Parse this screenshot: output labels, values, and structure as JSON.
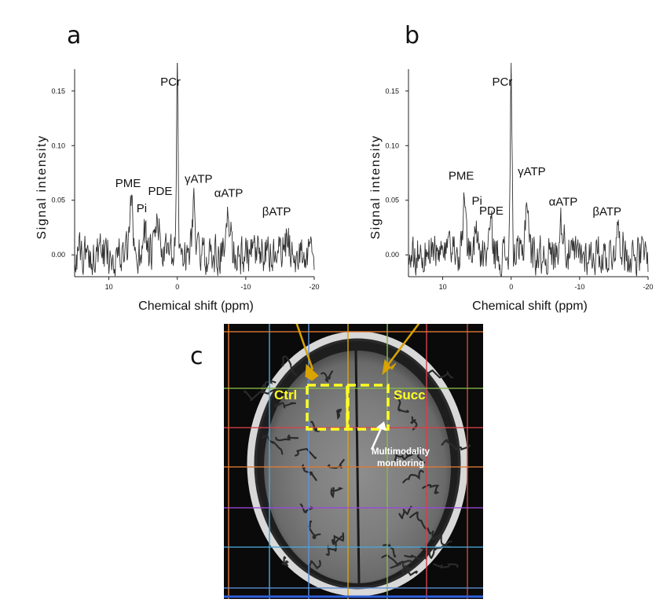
{
  "figure": {
    "panel_a_letter": "a",
    "panel_b_letter": "b",
    "panel_c_letter": "c"
  },
  "chart_data": [
    {
      "panel": "a",
      "type": "line",
      "xlabel": "Chemical shift (ppm)",
      "ylabel": "Signal intensity",
      "xlim": [
        15,
        -20
      ],
      "ylim": [
        -0.02,
        0.17
      ],
      "x_ticks": [
        10,
        0,
        -10,
        -20
      ],
      "x_tick_labels": [
        "10",
        "0",
        "-10",
        "-20"
      ],
      "y_ticks": [
        0.0,
        0.05,
        0.1,
        0.15
      ],
      "y_tick_labels": [
        "0.00",
        "0.05",
        "0.10",
        "0.15"
      ],
      "peaks": [
        {
          "label": "PCr",
          "x": 0.0,
          "y": 0.165,
          "width": 0.18
        },
        {
          "label": "PME",
          "x": 6.7,
          "y": 0.043,
          "width": 0.35
        },
        {
          "label": "Pi",
          "x": 4.8,
          "y": 0.026,
          "width": 0.35
        },
        {
          "label": "PDE",
          "x": 2.9,
          "y": 0.032,
          "width": 0.4
        },
        {
          "label": "γATP",
          "x": -2.4,
          "y": 0.048,
          "width": 0.35
        },
        {
          "label": "αATP",
          "x": -7.5,
          "y": 0.032,
          "width": 0.45
        },
        {
          "label": "βATP",
          "x": -16.0,
          "y": 0.012,
          "width": 0.6
        }
      ],
      "annotations": [
        {
          "text": "PCr",
          "x": 1.0,
          "y": 0.155
        },
        {
          "text": "PME",
          "x": 7.2,
          "y": 0.062
        },
        {
          "text": "Pi",
          "x": 5.2,
          "y": 0.039
        },
        {
          "text": "PDE",
          "x": 2.5,
          "y": 0.055
        },
        {
          "text": "γATP",
          "x": -3.1,
          "y": 0.066
        },
        {
          "text": "αATP",
          "x": -7.5,
          "y": 0.053
        },
        {
          "text": "βATP",
          "x": -14.5,
          "y": 0.036
        }
      ]
    },
    {
      "panel": "b",
      "type": "line",
      "xlabel": "Chemical shift (ppm)",
      "ylabel": "Signal intensity",
      "xlim": [
        15,
        -20
      ],
      "ylim": [
        -0.02,
        0.17
      ],
      "x_ticks": [
        10,
        0,
        -10,
        -20
      ],
      "x_tick_labels": [
        "10",
        "0",
        "-10",
        "-20"
      ],
      "y_ticks": [
        0.0,
        0.05,
        0.1,
        0.15
      ],
      "y_tick_labels": [
        "0.00",
        "0.05",
        "0.10",
        "0.15"
      ],
      "peaks": [
        {
          "label": "PCr",
          "x": 0.0,
          "y": 0.165,
          "width": 0.18
        },
        {
          "label": "PME",
          "x": 6.8,
          "y": 0.058,
          "width": 0.3
        },
        {
          "label": "Pi",
          "x": 5.1,
          "y": 0.028,
          "width": 0.35
        },
        {
          "label": "PDE",
          "x": 3.0,
          "y": 0.026,
          "width": 0.4
        },
        {
          "label": "γATP",
          "x": -2.3,
          "y": 0.052,
          "width": 0.35
        },
        {
          "label": "αATP",
          "x": -7.4,
          "y": 0.03,
          "width": 0.5
        },
        {
          "label": "βATP",
          "x": -15.7,
          "y": 0.02,
          "width": 0.6
        }
      ],
      "annotations": [
        {
          "text": "PCr",
          "x": 1.3,
          "y": 0.155
        },
        {
          "text": "PME",
          "x": 7.3,
          "y": 0.069
        },
        {
          "text": "Pi",
          "x": 5.0,
          "y": 0.046
        },
        {
          "text": "PDE",
          "x": 2.9,
          "y": 0.037
        },
        {
          "text": "γATP",
          "x": -3.0,
          "y": 0.073
        },
        {
          "text": "αATP",
          "x": -7.6,
          "y": 0.045
        },
        {
          "text": "βATP",
          "x": -14.0,
          "y": 0.036
        }
      ]
    }
  ],
  "mri": {
    "label_ctrl": "Ctrl",
    "label_succ": "Succ",
    "caption": "Multimodality monitoring",
    "caption_line1": "Multimodality",
    "caption_line2": "monitoring",
    "arrow_color": "#d9a300",
    "box_color": "#ffff22",
    "grid_vertical_colors": [
      "#e07a34",
      "#4aa6d8",
      "#5f8fd8",
      "#d9a300",
      "#86b94a",
      "#d8404a",
      "#c84a34"
    ],
    "grid_horizontal_colors": [
      "#e07a34",
      "#86b94a",
      "#d8404a",
      "#e07a34",
      "#9a4ad8",
      "#4aa6d8",
      "#5f8fd8"
    ]
  }
}
